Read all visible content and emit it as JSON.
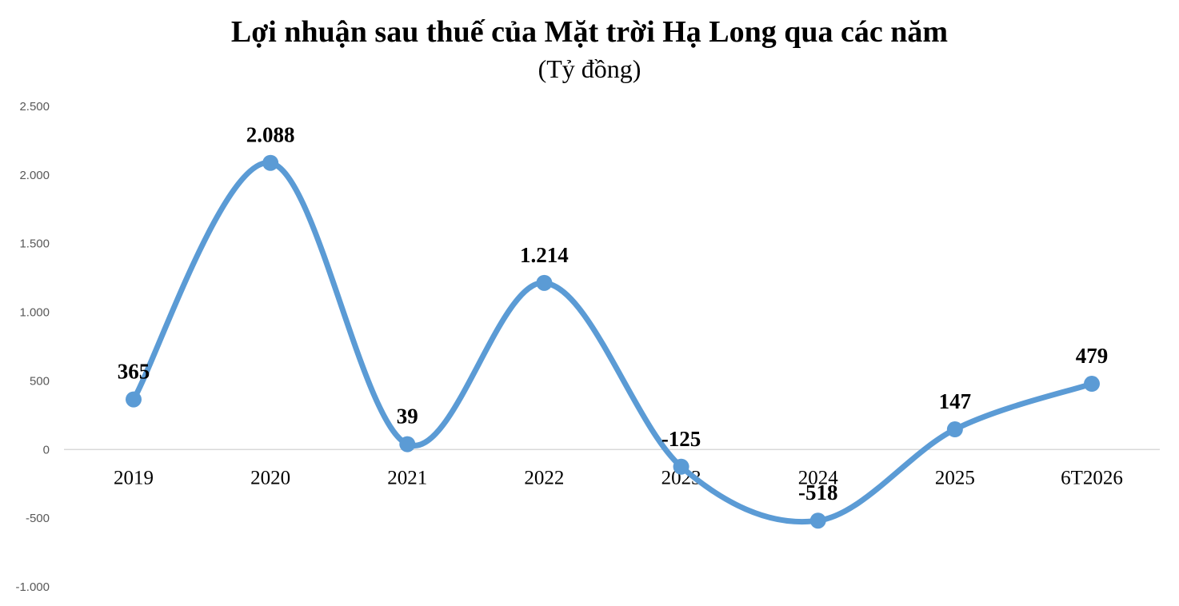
{
  "chart_data": {
    "type": "line",
    "title": "Lợi nhuận sau thuế của Mặt trời Hạ Long qua các năm",
    "subtitle": "(Tỷ đồng)",
    "categories": [
      "2019",
      "2020",
      "2021",
      "2022",
      "2023",
      "2024",
      "2025",
      "6T2026"
    ],
    "series": [
      {
        "values": [
          365,
          2088,
          39,
          1214,
          -125,
          -518,
          147,
          479
        ]
      }
    ],
    "data_labels": [
      "365",
      "2.088",
      "39",
      "1.214",
      "-125",
      "-518",
      "147",
      "479"
    ],
    "yticks": [
      2500,
      2000,
      1500,
      1000,
      500,
      0,
      -500,
      -1000
    ],
    "ytick_labels": [
      "2.500",
      "2.000",
      "1.500",
      "1.000",
      "500",
      "0",
      "-500",
      "-1.000"
    ],
    "ylim": [
      -1000,
      2500
    ],
    "grid": false,
    "smooth": true,
    "line_color": "#5B9BD5",
    "marker_color": "#5B9BD5"
  }
}
